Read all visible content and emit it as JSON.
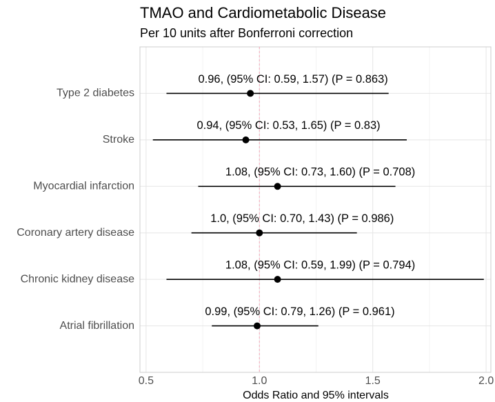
{
  "chart_data": {
    "type": "forest",
    "title": "TMAO and Cardiometabolic Disease",
    "subtitle": "Per 10 units after Bonferroni correction",
    "x_label": "Odds Ratio and 95% intervals",
    "categories": [
      "Type 2 diabetes",
      "Stroke",
      "Myocardial infarction",
      "Coronary artery disease",
      "Chronic kidney disease",
      "Atrial fibrillation"
    ],
    "values": [
      0.96,
      0.94,
      1.08,
      1.0,
      1.08,
      0.99
    ],
    "lower": [
      0.59,
      0.53,
      0.73,
      0.7,
      0.59,
      0.79
    ],
    "upper": [
      1.57,
      1.65,
      1.6,
      1.43,
      1.99,
      1.26
    ],
    "value_labels": [
      "0.96, (95% CI: 0.59, 1.57) (P = 0.863)",
      "0.94, (95% CI: 0.53, 1.65) (P = 0.83)",
      "1.08, (95% CI: 0.73, 1.60) (P = 0.708)",
      "1.0, (95% CI: 0.70, 1.43) (P = 0.986)",
      "1.08, (95% CI: 0.59, 1.99) (P = 0.794)",
      "0.99, (95% CI: 0.79, 1.26) (P = 0.961)"
    ],
    "color": "#000000",
    "reference_line": 1,
    "reference_color": "#f4a6b8",
    "xlim": [
      0.473,
      2.021
    ],
    "xticks": [
      0.5,
      {
        "value": 1,
        "label": "1.0"
      },
      1.5,
      {
        "value": 2,
        "label": "2.0"
      }
    ],
    "minor_xticks": [
      0.75,
      1.25,
      1.75
    ],
    "grid": true
  }
}
